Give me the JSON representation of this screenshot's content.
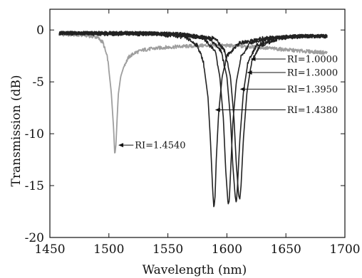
{
  "chart_data": {
    "type": "line",
    "title": "",
    "xlabel": "Wavelength (nm)",
    "ylabel": "Transmission (dB)",
    "xlim": [
      1450,
      1700
    ],
    "ylim": [
      -20,
      2
    ],
    "xticks": [
      1450,
      1500,
      1550,
      1600,
      1650,
      1700
    ],
    "yticks": [
      0,
      -5,
      -10,
      -15,
      -20
    ],
    "grid": false,
    "series": [
      {
        "name": "RI=1.4540",
        "color": "#9e9e9e",
        "x": [
          1458,
          1480,
          1490,
          1495,
          1499,
          1502,
          1504,
          1505,
          1506,
          1507,
          1508,
          1510,
          1513,
          1517,
          1522,
          1530,
          1545,
          1560,
          1580,
          1600,
          1620,
          1640,
          1660,
          1685
        ],
        "y": [
          -0.4,
          -0.5,
          -0.7,
          -1.2,
          -2.8,
          -6.0,
          -9.5,
          -12.1,
          -11.0,
          -8.5,
          -6.2,
          -4.5,
          -3.4,
          -2.6,
          -2.2,
          -1.9,
          -1.7,
          -1.6,
          -1.5,
          -1.5,
          -1.6,
          -1.8,
          -2.0,
          -2.2
        ]
      },
      {
        "name": "RI=1.4380",
        "color": "#222222",
        "x": [
          1458,
          1500,
          1540,
          1565,
          1575,
          1580,
          1584,
          1586,
          1588,
          1589,
          1590,
          1591,
          1593,
          1596,
          1600,
          1610,
          1630,
          1660,
          1685
        ],
        "y": [
          -0.3,
          -0.4,
          -0.4,
          -0.7,
          -1.5,
          -3.0,
          -6.5,
          -10.5,
          -15.5,
          -17.2,
          -16.0,
          -12.5,
          -8.0,
          -4.5,
          -2.5,
          -1.3,
          -0.8,
          -0.6,
          -0.6
        ]
      },
      {
        "name": "RI=1.3950",
        "color": "#222222",
        "x": [
          1458,
          1520,
          1560,
          1580,
          1590,
          1594,
          1597,
          1599,
          1601,
          1602,
          1603,
          1605,
          1608,
          1612,
          1620,
          1640,
          1660,
          1685
        ],
        "y": [
          -0.3,
          -0.3,
          -0.4,
          -0.8,
          -2.0,
          -4.5,
          -8.5,
          -13.5,
          -16.8,
          -16.5,
          -14.0,
          -9.0,
          -5.0,
          -2.6,
          -1.2,
          -0.7,
          -0.6,
          -0.6
        ]
      },
      {
        "name": "RI=1.3000",
        "color": "#222222",
        "x": [
          1458,
          1520,
          1560,
          1585,
          1595,
          1600,
          1603,
          1605,
          1607,
          1608,
          1609,
          1611,
          1614,
          1618,
          1625,
          1640,
          1660,
          1685
        ],
        "y": [
          -0.3,
          -0.3,
          -0.4,
          -0.8,
          -2.0,
          -4.5,
          -8.5,
          -13.0,
          -16.0,
          -16.7,
          -15.0,
          -10.5,
          -6.0,
          -3.0,
          -1.5,
          -0.8,
          -0.6,
          -0.6
        ]
      },
      {
        "name": "RI=1.0000",
        "color": "#222222",
        "x": [
          1458,
          1520,
          1560,
          1590,
          1598,
          1603,
          1606,
          1608,
          1610,
          1611,
          1612,
          1614,
          1617,
          1621,
          1628,
          1645,
          1665,
          1685
        ],
        "y": [
          -0.3,
          -0.3,
          -0.4,
          -0.8,
          -2.0,
          -4.5,
          -8.5,
          -13.0,
          -16.0,
          -16.3,
          -15.0,
          -10.5,
          -6.0,
          -3.0,
          -1.5,
          -0.8,
          -0.6,
          -0.6
        ]
      }
    ],
    "annotations": [
      {
        "text": "RI=1.0000",
        "x_arrow": 1620,
        "y_arrow": -2.8,
        "x_text": 1651,
        "y_text": -2.8
      },
      {
        "text": "RI=1.3000",
        "x_arrow": 1617,
        "y_arrow": -4.1,
        "x_text": 1651,
        "y_text": -4.1
      },
      {
        "text": "RI=1.3950",
        "x_arrow": 1611,
        "y_arrow": -5.7,
        "x_text": 1651,
        "y_text": -5.7
      },
      {
        "text": "RI=1.4380",
        "x_arrow": 1590,
        "y_arrow": -7.7,
        "x_text": 1651,
        "y_text": -7.7
      },
      {
        "text": "RI=1.4540",
        "x_arrow": 1508,
        "y_arrow": -11.1,
        "x_text": 1522,
        "y_text": -11.1
      }
    ]
  }
}
